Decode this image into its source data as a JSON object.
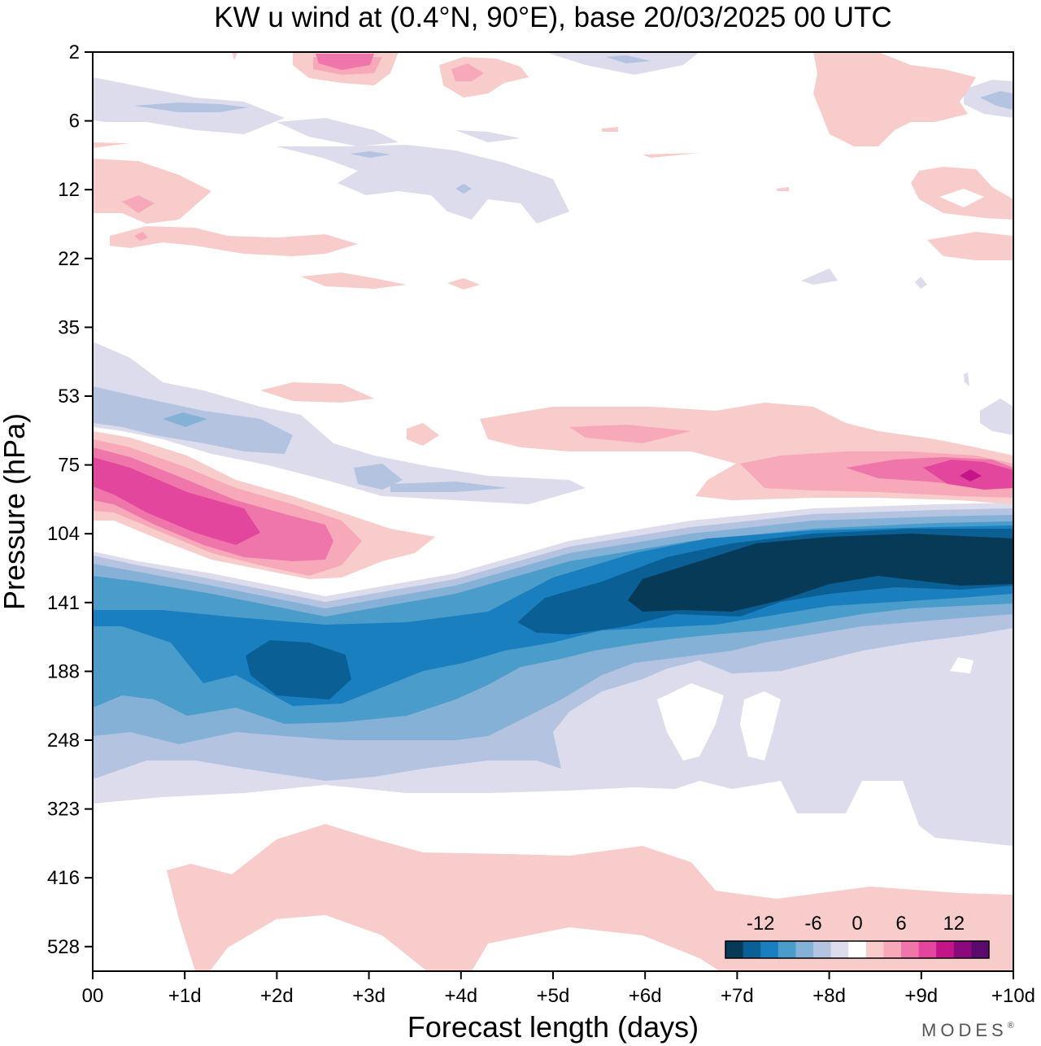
{
  "chart_data": {
    "type": "heatmap",
    "title": "KW u wind at (0.4°N, 90°E),  base 20/03/2025  00 UTC",
    "xlabel": "Forecast length (days)",
    "ylabel": "Pressure (hPa)",
    "x_ticks": [
      "00",
      "+1d",
      "+2d",
      "+3d",
      "+4d",
      "+5d",
      "+6d",
      "+7d",
      "+8d",
      "+9d",
      "+10d"
    ],
    "x_range_days": [
      0,
      10
    ],
    "y_ticks": [
      "2",
      "6",
      "12",
      "22",
      "35",
      "53",
      "75",
      "104",
      "141",
      "188",
      "248",
      "323",
      "416",
      "528"
    ],
    "y_reversed": true,
    "colorbar": {
      "tick_labels": [
        "-12",
        "-6",
        "0",
        "6",
        "12"
      ],
      "levels": [
        -14,
        -12,
        -10,
        -8,
        -6,
        -4,
        -2,
        2,
        4,
        6,
        8,
        10,
        12,
        14
      ],
      "colors": [
        "#073a56",
        "#0a5f94",
        "#1a7fbe",
        "#4a9ccb",
        "#86b1d6",
        "#b3c3e0",
        "#dcdcec",
        "#ffffff",
        "#f9cccc",
        "#f7a9b9",
        "#ef76aa",
        "#e3479d",
        "#c41588",
        "#8a0a7e",
        "#5b0a6e"
      ]
    },
    "features": [
      {
        "value": -14,
        "description": "core easterly jet",
        "days": [
          6.0,
          10.0
        ],
        "pressure_hPa": [
          100,
          150
        ]
      },
      {
        "value": -10,
        "description": "easterly maximum",
        "days": [
          1.8,
          2.7
        ],
        "pressure_hPa": [
          160,
          210
        ]
      },
      {
        "value": 10,
        "description": "westerly maximum",
        "days": [
          0.0,
          1.7
        ],
        "pressure_hPa": [
          65,
          110
        ]
      },
      {
        "value": 12,
        "description": "westerly maximum",
        "days": [
          9.0,
          10.0
        ],
        "pressure_hPa": [
          70,
          85
        ]
      },
      {
        "value": 4,
        "description": "weak westerlies",
        "days": [
          0.8,
          10.0
        ],
        "pressure_hPa": [
          340,
          560
        ]
      }
    ]
  },
  "watermark": "MODES",
  "watermark_mark": "®"
}
